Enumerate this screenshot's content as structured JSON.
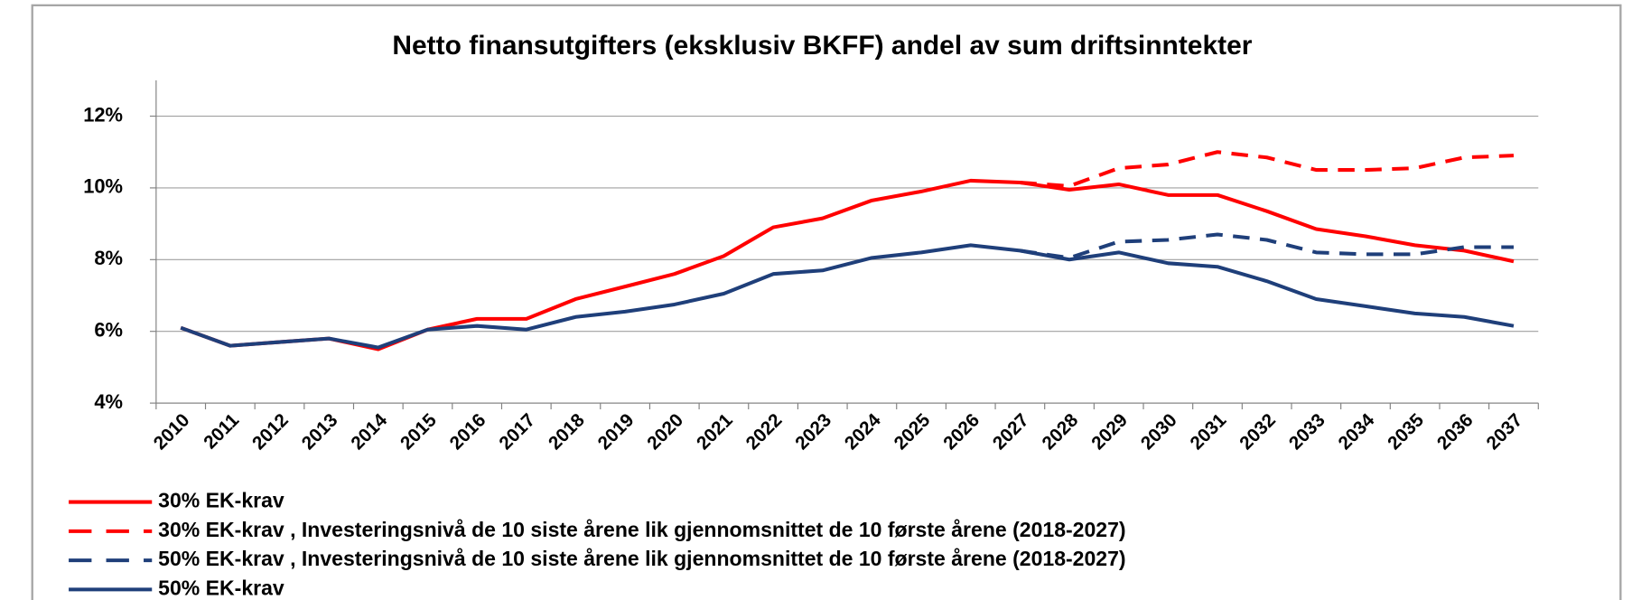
{
  "chart_data": {
    "type": "line",
    "title": "Netto finansutgifters (eksklusiv BKFF) andel av sum driftsinntekter",
    "categories": [
      "2010",
      "2011",
      "2012",
      "2013",
      "2014",
      "2015",
      "2016",
      "2017",
      "2018",
      "2019",
      "2020",
      "2021",
      "2022",
      "2023",
      "2024",
      "2025",
      "2026",
      "2027",
      "2028",
      "2029",
      "2030",
      "2031",
      "2032",
      "2033",
      "2034",
      "2035",
      "2036",
      "2037"
    ],
    "ylim": [
      4,
      13
    ],
    "yticks": [
      {
        "value": 4,
        "label": "4%"
      },
      {
        "value": 6,
        "label": "6%"
      },
      {
        "value": 8,
        "label": "8%"
      },
      {
        "value": 10,
        "label": "10%"
      },
      {
        "value": 12,
        "label": "12%"
      }
    ],
    "grid": true,
    "series": [
      {
        "name": "30% EK-krav",
        "color": "#ff0000",
        "dashed": false,
        "values": [
          6.1,
          5.6,
          5.7,
          5.8,
          5.5,
          6.05,
          6.35,
          6.35,
          6.9,
          7.25,
          7.6,
          8.1,
          8.9,
          9.15,
          9.65,
          9.9,
          10.2,
          10.15,
          9.95,
          10.1,
          9.8,
          9.8,
          9.35,
          8.85,
          8.65,
          8.4,
          8.25,
          7.95
        ]
      },
      {
        "name": "30% EK-krav , Investeringsnivå de 10 siste årene lik gjennomsnittet de 10 første årene (2018-2027)",
        "color": "#ff0000",
        "dashed": true,
        "values": [
          null,
          null,
          null,
          null,
          null,
          null,
          null,
          null,
          null,
          null,
          null,
          null,
          null,
          null,
          null,
          null,
          null,
          10.15,
          10.05,
          10.55,
          10.65,
          11.0,
          10.85,
          10.5,
          10.5,
          10.55,
          10.85,
          10.9
        ]
      },
      {
        "name": "50% EK-krav , Investeringsnivå de 10 siste årene lik gjennomsnittet de 10 første årene (2018-2027)",
        "color": "#1f3f7a",
        "dashed": true,
        "values": [
          null,
          null,
          null,
          null,
          null,
          null,
          null,
          null,
          null,
          null,
          null,
          null,
          null,
          null,
          null,
          null,
          null,
          8.25,
          8.05,
          8.5,
          8.55,
          8.7,
          8.55,
          8.2,
          8.15,
          8.15,
          8.35,
          8.35
        ]
      },
      {
        "name": "50% EK-krav",
        "color": "#1f3f7a",
        "dashed": false,
        "values": [
          6.1,
          5.6,
          5.7,
          5.8,
          5.55,
          6.05,
          6.15,
          6.05,
          6.4,
          6.55,
          6.75,
          7.05,
          7.6,
          7.7,
          8.05,
          8.2,
          8.4,
          8.25,
          8.0,
          8.2,
          7.9,
          7.8,
          7.4,
          6.9,
          6.7,
          6.5,
          6.4,
          6.15
        ]
      }
    ]
  }
}
